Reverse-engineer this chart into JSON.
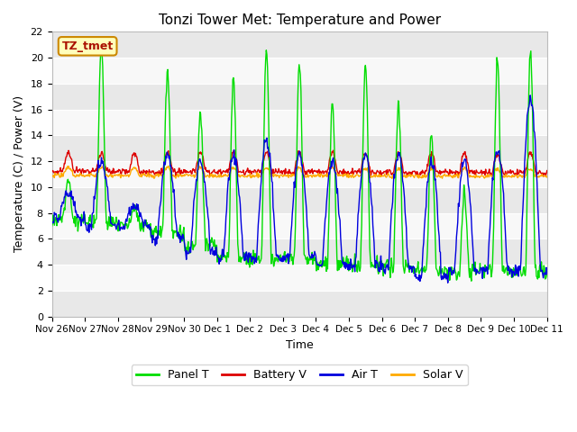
{
  "title": "Tonzi Tower Met: Temperature and Power",
  "xlabel": "Time",
  "ylabel": "Temperature (C) / Power (V)",
  "watermark": "TZ_tmet",
  "ylim": [
    0,
    22
  ],
  "yticks": [
    0,
    2,
    4,
    6,
    8,
    10,
    12,
    14,
    16,
    18,
    20,
    22
  ],
  "xtick_labels": [
    "Nov 26",
    "Nov 27",
    "Nov 28",
    "Nov 29",
    "Nov 30",
    "Dec 1",
    "Dec 2",
    "Dec 3",
    "Dec 4",
    "Dec 5",
    "Dec 6",
    "Dec 7",
    "Dec 8",
    "Dec 9",
    "Dec 10",
    "Dec 11"
  ],
  "legend_labels": [
    "Panel T",
    "Battery V",
    "Air T",
    "Solar V"
  ],
  "legend_colors": [
    "#00dd00",
    "#dd0000",
    "#0000dd",
    "#ffaa00"
  ],
  "line_colors": [
    "#00dd00",
    "#dd0000",
    "#0000dd",
    "#ffaa00"
  ],
  "band_color_dark": "#e8e8e8",
  "band_color_light": "#f8f8f8",
  "title_fontsize": 11,
  "axis_fontsize": 9,
  "tick_fontsize": 8,
  "xtick_fontsize": 7.5
}
